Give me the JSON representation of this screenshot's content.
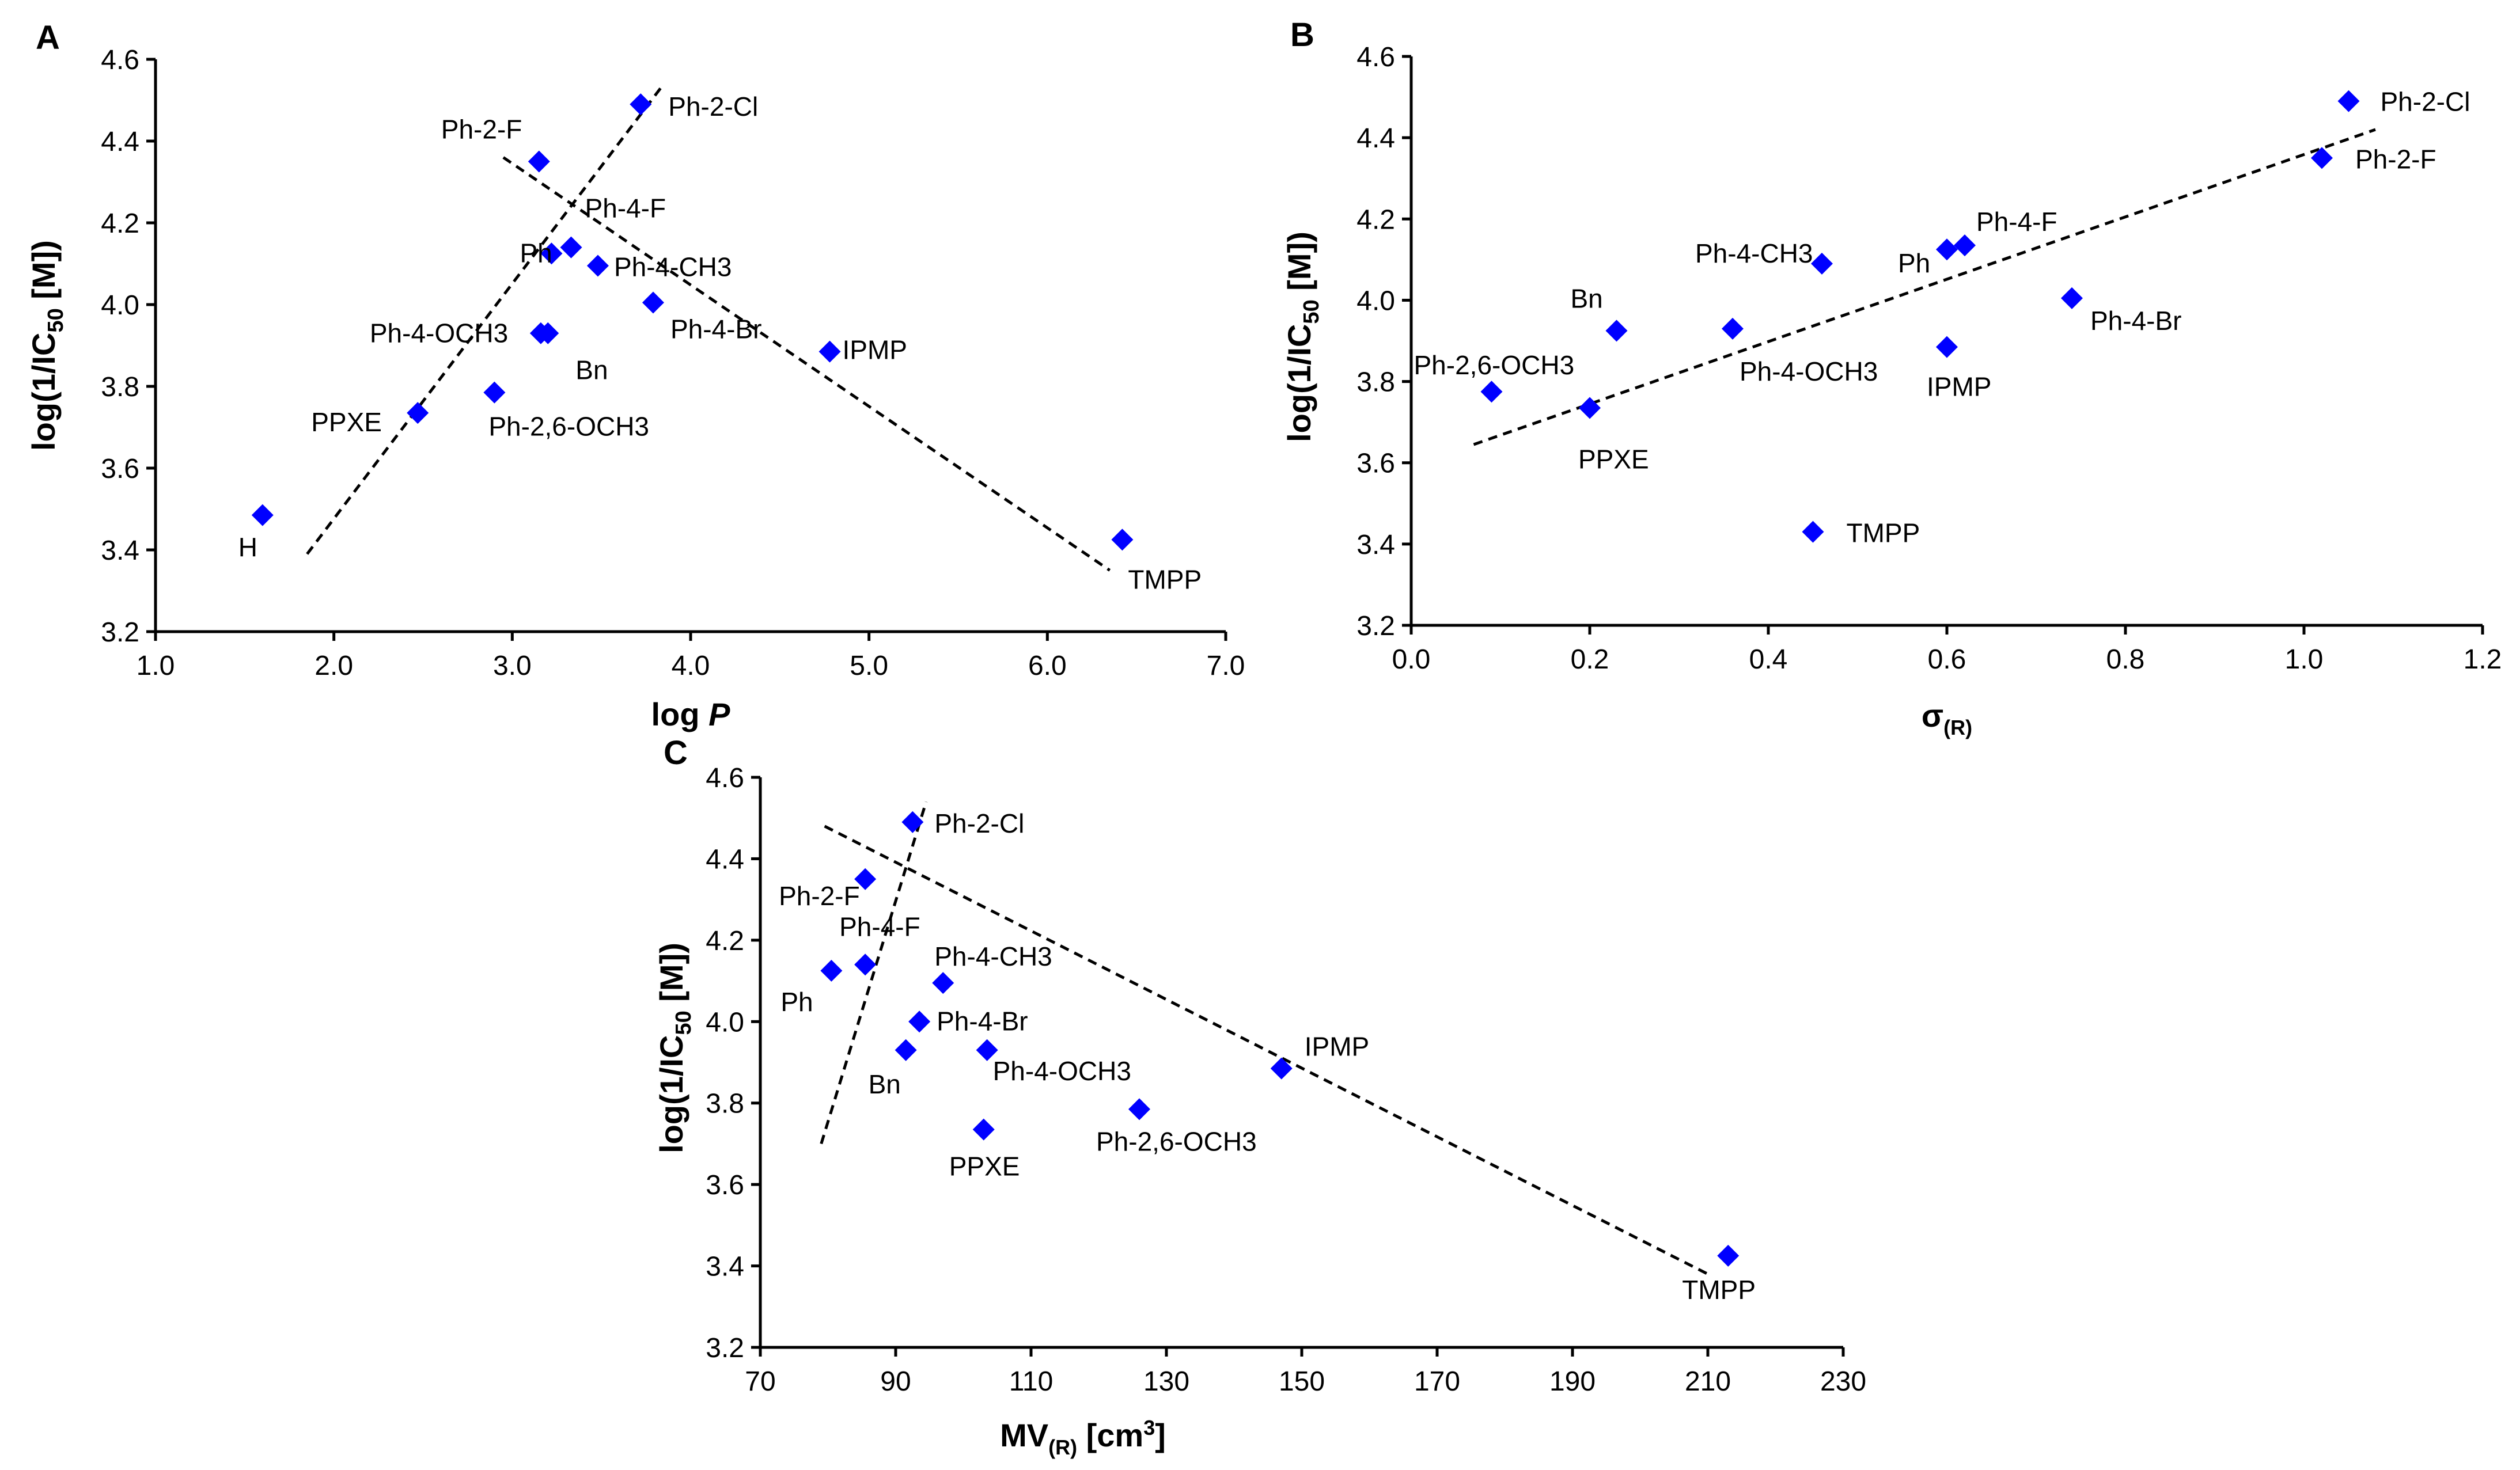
{
  "chart_data": [
    {
      "type": "scatter",
      "panel": "A",
      "xlabel": "log",
      "xlabel_italic": "P",
      "ylabel": "log(1/IC50 [M])",
      "xlim": [
        1.0,
        7.0
      ],
      "ylim": [
        3.2,
        4.6
      ],
      "xticks": [
        "1.0",
        "2.0",
        "3.0",
        "4.0",
        "5.0",
        "6.0",
        "7.0"
      ],
      "yticks": [
        "3.2",
        "3.4",
        "3.6",
        "3.8",
        "4.0",
        "4.2",
        "4.4",
        "4.6"
      ],
      "grid": false,
      "marker_color": "#0000ff",
      "points": [
        {
          "label": "H",
          "x": 1.6,
          "y": 3.485
        },
        {
          "label": "PPXE",
          "x": 2.47,
          "y": 3.735
        },
        {
          "label": "Ph-2,6-OCH3",
          "x": 2.9,
          "y": 3.785
        },
        {
          "label": "Ph-4-OCH3",
          "x": 3.16,
          "y": 3.93
        },
        {
          "label": "Bn",
          "x": 3.2,
          "y": 3.93
        },
        {
          "label": "Ph",
          "x": 3.22,
          "y": 4.125
        },
        {
          "label": "Ph-4-F",
          "x": 3.33,
          "y": 4.14
        },
        {
          "label": "Ph-4-CH3",
          "x": 3.48,
          "y": 4.095
        },
        {
          "label": "Ph-4-Br",
          "x": 3.79,
          "y": 4.005
        },
        {
          "label": "Ph-2-F",
          "x": 3.15,
          "y": 4.35
        },
        {
          "label": "Ph-2-Cl",
          "x": 3.72,
          "y": 4.49
        },
        {
          "label": "IPMP",
          "x": 4.78,
          "y": 3.885
        },
        {
          "label": "TMPP",
          "x": 6.42,
          "y": 3.425
        }
      ],
      "trendlines": [
        {
          "x": [
            1.85,
            3.85
          ],
          "y": [
            3.39,
            4.54
          ]
        },
        {
          "x": [
            2.95,
            6.35
          ],
          "y": [
            4.36,
            3.35
          ]
        }
      ]
    },
    {
      "type": "scatter",
      "panel": "B",
      "xlabel": "σ",
      "xlabel_sub": "(R)",
      "ylabel": "log(1/IC50 [M])",
      "xlim": [
        0.0,
        1.2
      ],
      "ylim": [
        3.2,
        4.6
      ],
      "xticks": [
        "0.0",
        "0.2",
        "0.4",
        "0.6",
        "0.8",
        "1.0",
        "1.2"
      ],
      "yticks": [
        "3.2",
        "3.4",
        "3.6",
        "3.8",
        "4.0",
        "4.2",
        "4.4",
        "4.6"
      ],
      "grid": false,
      "marker_color": "#0000ff",
      "points": [
        {
          "label": "Ph-2,6-OCH3",
          "x": 0.09,
          "y": 3.775
        },
        {
          "label": "PPXE",
          "x": 0.2,
          "y": 3.735
        },
        {
          "label": "Bn",
          "x": 0.23,
          "y": 3.925
        },
        {
          "label": "Ph-4-OCH3",
          "x": 0.36,
          "y": 3.93
        },
        {
          "label": "Ph-4-CH3",
          "x": 0.46,
          "y": 4.09
        },
        {
          "label": "TMPP",
          "x": 0.45,
          "y": 3.43
        },
        {
          "label": "Ph",
          "x": 0.6,
          "y": 4.125
        },
        {
          "label": "Ph-4-F",
          "x": 0.62,
          "y": 4.135
        },
        {
          "label": "IPMP",
          "x": 0.6,
          "y": 3.885
        },
        {
          "label": "Ph-4-Br",
          "x": 0.74,
          "y": 4.005
        },
        {
          "label": "Ph-2-F",
          "x": 1.02,
          "y": 4.35
        },
        {
          "label": "Ph-2-Cl",
          "x": 1.05,
          "y": 4.49
        }
      ],
      "trendlines": [
        {
          "x": [
            0.07,
            1.08
          ],
          "y": [
            3.645,
            4.42
          ]
        }
      ]
    },
    {
      "type": "scatter",
      "panel": "C",
      "xlabel": "MV",
      "xlabel_sub": "(R)",
      "xlabel_suffix": " [cm",
      "xlabel_sup": "3",
      "xlabel_end": "]",
      "ylabel": "log(1/IC50 [M])",
      "xlim": [
        70,
        230
      ],
      "ylim": [
        3.2,
        4.6
      ],
      "xticks": [
        "70",
        "90",
        "110",
        "130",
        "150",
        "170",
        "190",
        "210",
        "230"
      ],
      "yticks": [
        "3.2",
        "3.4",
        "3.6",
        "3.8",
        "4.0",
        "4.2",
        "4.4",
        "4.6"
      ],
      "grid": false,
      "marker_color": "#0000ff",
      "points": [
        {
          "label": "Ph",
          "x": 80.5,
          "y": 4.125
        },
        {
          "label": "Ph-4-F",
          "x": 85.5,
          "y": 4.14
        },
        {
          "label": "Ph-2-F",
          "x": 85.5,
          "y": 4.35
        },
        {
          "label": "Ph-2-Cl",
          "x": 92.5,
          "y": 4.49
        },
        {
          "label": "Bn",
          "x": 91.5,
          "y": 3.93
        },
        {
          "label": "Ph-4-Br",
          "x": 93.5,
          "y": 4.0
        },
        {
          "label": "Ph-4-CH3",
          "x": 97,
          "y": 4.095
        },
        {
          "label": "Ph-4-OCH3",
          "x": 103.5,
          "y": 3.93
        },
        {
          "label": "PPXE",
          "x": 103,
          "y": 3.735
        },
        {
          "label": "Ph-2,6-OCH3",
          "x": 126,
          "y": 3.785
        },
        {
          "label": "IPMP",
          "x": 147,
          "y": 3.885
        },
        {
          "label": "TMPP",
          "x": 213,
          "y": 3.425
        }
      ],
      "trendlines": [
        {
          "x": [
            79,
            94.5
          ],
          "y": [
            3.7,
            4.54
          ]
        },
        {
          "x": [
            79.5,
            210
          ],
          "y": [
            4.48,
            3.38
          ]
        }
      ]
    }
  ]
}
